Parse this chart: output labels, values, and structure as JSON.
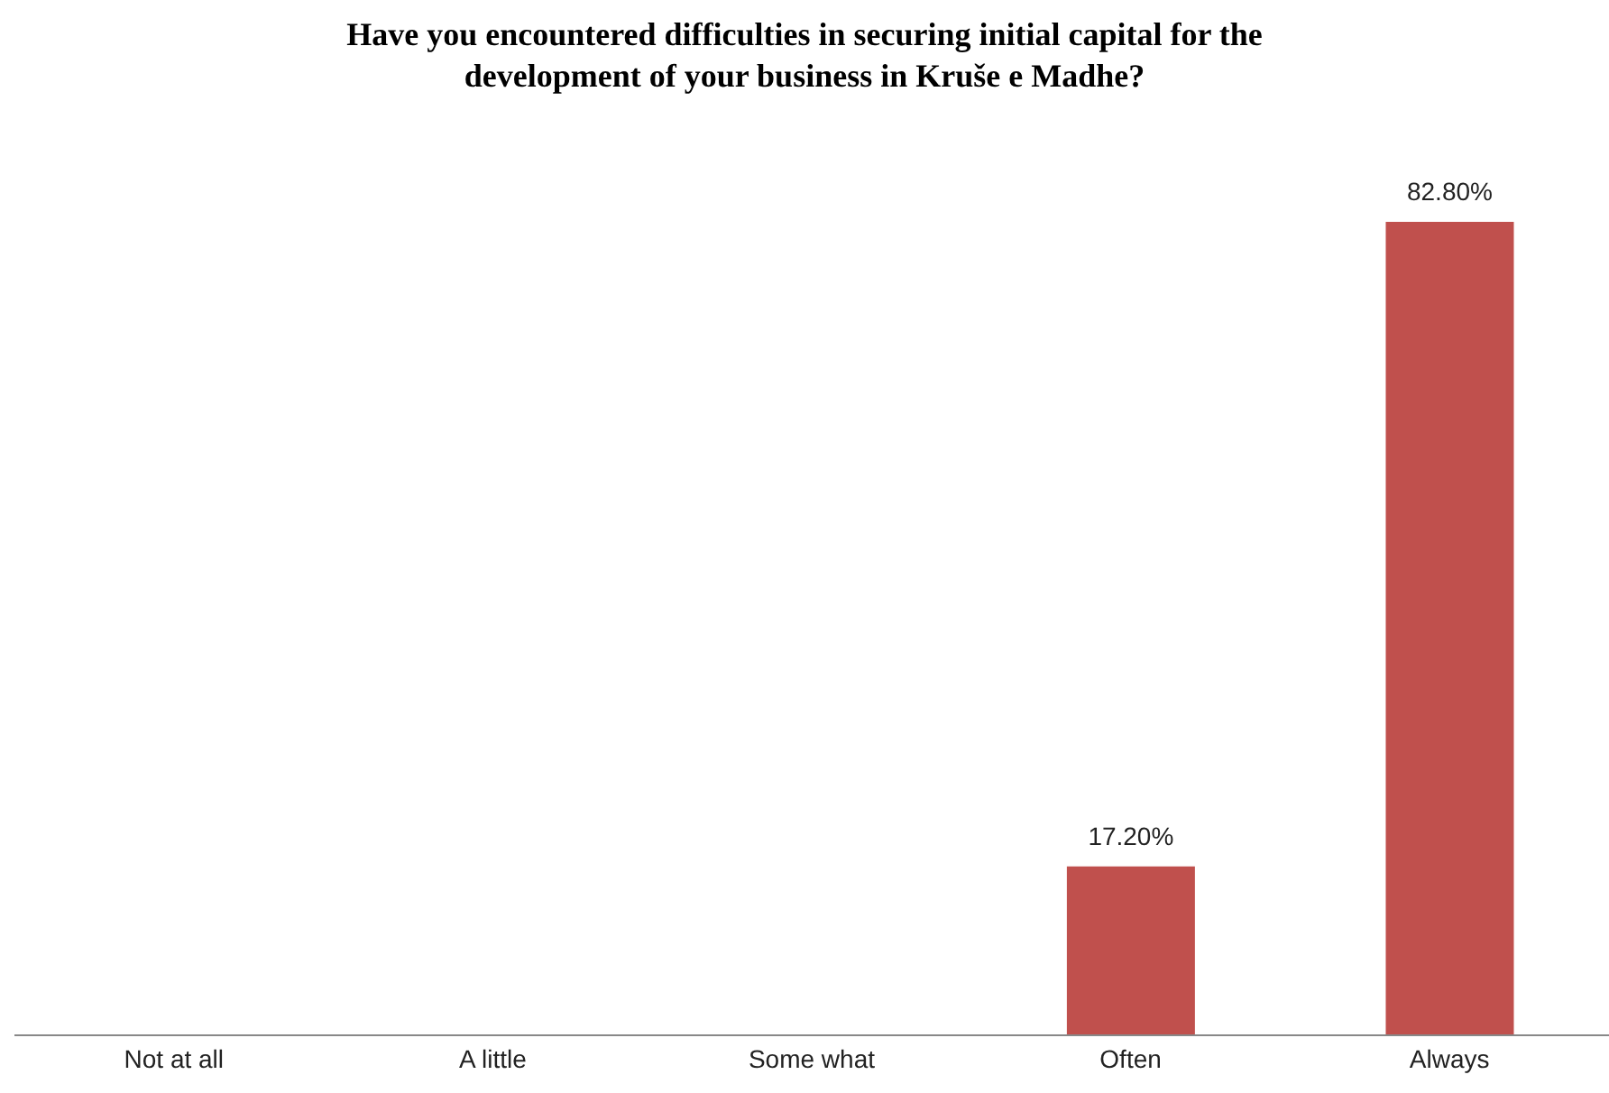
{
  "chart_data": {
    "type": "bar",
    "title": "Have you encountered difficulties in securing initial capital for the development of your business in Kruše e Madhe?",
    "categories": [
      "Not at all",
      "A little",
      "Some what",
      "Often",
      "Always"
    ],
    "values": [
      0,
      0,
      0,
      17.2,
      82.8
    ],
    "value_labels": [
      null,
      null,
      null,
      "17.20%",
      "82.80%"
    ],
    "color": "#c0504d"
  }
}
